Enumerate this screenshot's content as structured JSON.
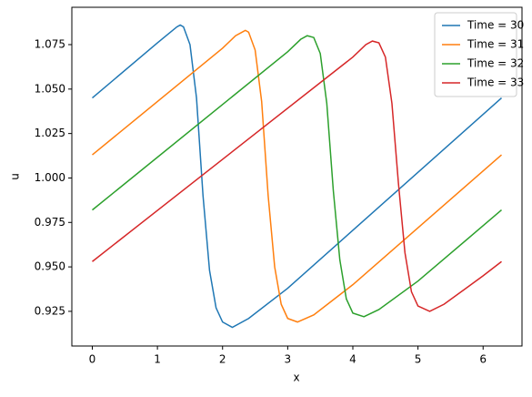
{
  "chart_data": {
    "type": "line",
    "xlabel": "x",
    "ylabel": "u",
    "xlim": [
      -0.314,
      6.597
    ],
    "ylim": [
      0.9055,
      1.096
    ],
    "xticks": [
      0,
      1,
      2,
      3,
      4,
      5,
      6
    ],
    "yticks": [
      0.925,
      {
        "value": 0.95,
        "label": "0.950"
      },
      0.975,
      {
        "value": 1.0,
        "label": "1.000"
      },
      1.025,
      {
        "value": 1.05,
        "label": "1.050"
      },
      1.075
    ],
    "grid": false,
    "legend": "upper right",
    "series": [
      {
        "name": "Time = 30",
        "color": "#1f77b4",
        "x": [
          0,
          1.0,
          1.2,
          1.3,
          1.35,
          1.4,
          1.5,
          1.6,
          1.7,
          1.8,
          1.9,
          2.0,
          2.15,
          2.4,
          3.0,
          6.283
        ],
        "values": [
          1.045,
          1.076,
          1.082,
          1.085,
          1.086,
          1.085,
          1.075,
          1.045,
          0.99,
          0.948,
          0.927,
          0.919,
          0.916,
          0.921,
          0.938,
          1.045
        ]
      },
      {
        "name": "Time = 31",
        "color": "#ff7f0e",
        "x": [
          0,
          2.0,
          2.2,
          2.3,
          2.35,
          2.4,
          2.5,
          2.6,
          2.7,
          2.8,
          2.9,
          3.0,
          3.15,
          3.4,
          4.0,
          6.283
        ],
        "values": [
          1.013,
          1.073,
          1.08,
          1.082,
          1.083,
          1.082,
          1.072,
          1.043,
          0.99,
          0.95,
          0.929,
          0.921,
          0.919,
          0.923,
          0.94,
          1.013
        ]
      },
      {
        "name": "Time = 32",
        "color": "#2ca02c",
        "x": [
          0,
          3.0,
          3.2,
          3.3,
          3.4,
          3.5,
          3.6,
          3.7,
          3.8,
          3.9,
          4.0,
          4.17,
          4.4,
          5.0,
          6.283
        ],
        "values": [
          0.982,
          1.071,
          1.078,
          1.08,
          1.079,
          1.07,
          1.042,
          0.993,
          0.954,
          0.932,
          0.924,
          0.922,
          0.926,
          0.942,
          0.982
        ]
      },
      {
        "name": "Time = 33",
        "color": "#d62728",
        "x": [
          0,
          4.0,
          4.2,
          4.3,
          4.4,
          4.5,
          4.6,
          4.7,
          4.8,
          4.9,
          5.0,
          5.18,
          5.4,
          6.0,
          6.283
        ],
        "values": [
          0.953,
          1.068,
          1.075,
          1.077,
          1.076,
          1.068,
          1.042,
          0.997,
          0.958,
          0.936,
          0.928,
          0.925,
          0.929,
          0.945,
          0.953
        ]
      }
    ]
  }
}
